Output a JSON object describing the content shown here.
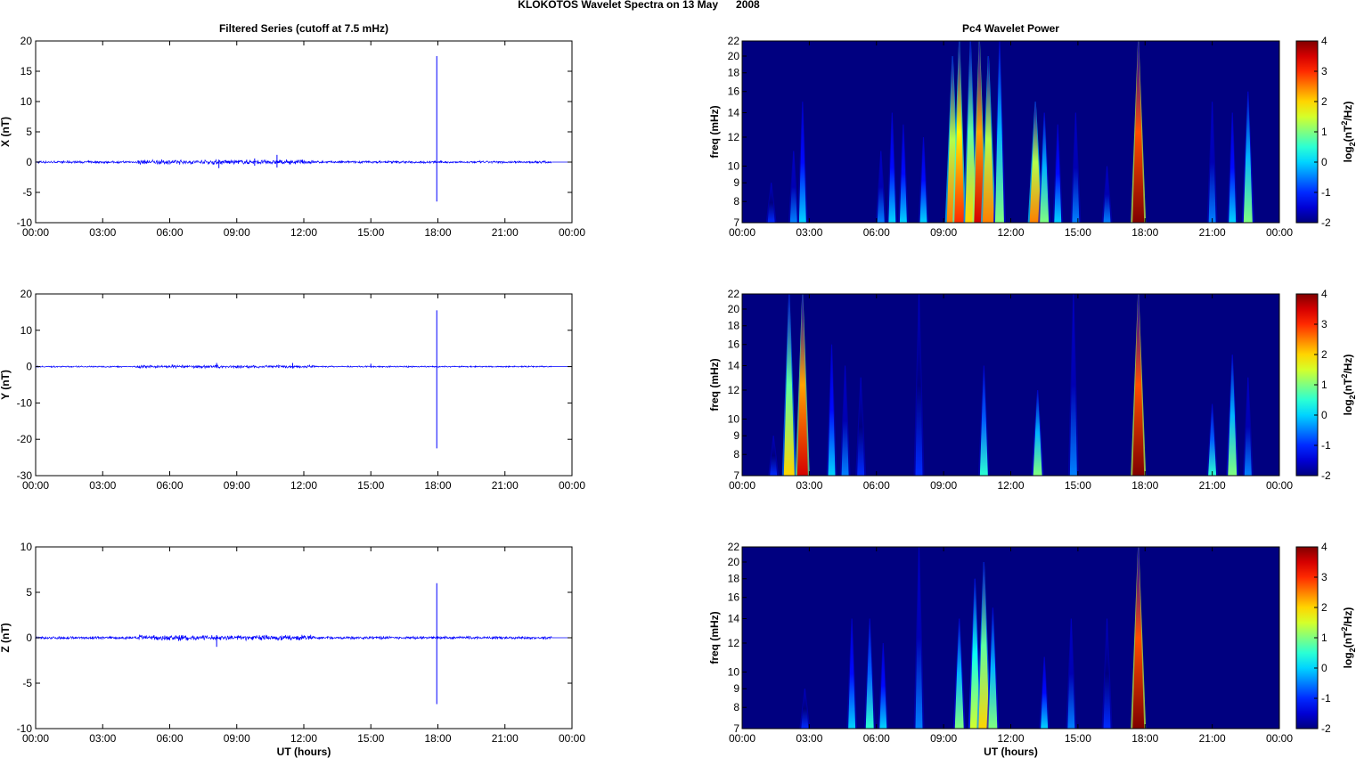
{
  "title": "KLOKOTOS Wavelet Spectra on 13 May      2008",
  "chart_data": [
    {
      "type": "line",
      "title": "Filtered Series (cutoff at 7.5 mHz)",
      "ylabel": "X (nT)",
      "xlabel": "",
      "xlim": [
        0,
        24
      ],
      "ylim": [
        -10,
        20
      ],
      "yticks": [
        -10,
        -5,
        0,
        5,
        10,
        15,
        20
      ],
      "baseline_noise": 0.15,
      "color": "#0000ff",
      "events": [
        {
          "hour": 10.8,
          "max": 1.2,
          "min": -0.9
        },
        {
          "hour": 8.2,
          "max": 0.4,
          "min": -1.0
        },
        {
          "hour": 9.8,
          "max": 0.6,
          "min": -0.6
        },
        {
          "hour": 17.95,
          "max": 17.5,
          "min": -6.5
        }
      ]
    },
    {
      "type": "line",
      "title": "",
      "ylabel": "Y (nT)",
      "xlabel": "",
      "xlim": [
        0,
        24
      ],
      "ylim": [
        -30,
        20
      ],
      "yticks": [
        -30,
        -20,
        -10,
        0,
        10,
        20
      ],
      "baseline_noise": 0.15,
      "color": "#0000ff",
      "events": [
        {
          "hour": 8.1,
          "max": 1.0,
          "min": -0.4
        },
        {
          "hour": 11.5,
          "max": 1.0,
          "min": -0.5
        },
        {
          "hour": 15.0,
          "max": 0.8,
          "min": -0.3
        },
        {
          "hour": 17.95,
          "max": 15.5,
          "min": -22.5
        }
      ]
    },
    {
      "type": "line",
      "title": "",
      "ylabel": "Z (nT)",
      "xlabel": "UT (hours)",
      "xlim": [
        0,
        24
      ],
      "ylim": [
        -10,
        10
      ],
      "yticks": [
        -10,
        -5,
        0,
        5,
        10
      ],
      "baseline_noise": 0.12,
      "color": "#0000ff",
      "events": [
        {
          "hour": 8.1,
          "max": 0.3,
          "min": -1.0
        },
        {
          "hour": 17.95,
          "max": 6.0,
          "min": -7.3
        }
      ]
    },
    {
      "type": "heatmap",
      "title": "Pc4 Wavelet Power",
      "ylabel": "freq (mHz)",
      "xlabel": "",
      "xlim": [
        0,
        24
      ],
      "ylim": [
        7,
        22
      ],
      "yscale": "log",
      "yticks": [
        7,
        8,
        9,
        10,
        12,
        14,
        16,
        18,
        20,
        22
      ],
      "colorbar": {
        "label": "log2(nT2/Hz)",
        "range": [
          -2,
          4
        ],
        "ticks": [
          -2,
          -1,
          0,
          1,
          2,
          3,
          4
        ]
      },
      "bursts": [
        [
          1.3,
          9,
          -1
        ],
        [
          2.3,
          11,
          -0.5
        ],
        [
          2.7,
          15,
          0
        ],
        [
          6.2,
          11,
          -0.5
        ],
        [
          6.7,
          14,
          0
        ],
        [
          7.2,
          13,
          0
        ],
        [
          8.1,
          12,
          0
        ],
        [
          9.4,
          20,
          2.5
        ],
        [
          9.7,
          22,
          3
        ],
        [
          10.2,
          22,
          2
        ],
        [
          10.6,
          22,
          3.5
        ],
        [
          11.0,
          20,
          2.5
        ],
        [
          11.5,
          22,
          1
        ],
        [
          13.1,
          15,
          2.5
        ],
        [
          13.5,
          14,
          1
        ],
        [
          14.1,
          13,
          0
        ],
        [
          14.9,
          14,
          -0.5
        ],
        [
          16.3,
          10,
          -0.5
        ],
        [
          17.7,
          22,
          4
        ],
        [
          21.0,
          15,
          -0.5
        ],
        [
          21.9,
          14,
          0
        ],
        [
          22.6,
          16,
          1
        ]
      ]
    },
    {
      "type": "heatmap",
      "title": "",
      "ylabel": "freq (mHz)",
      "xlabel": "",
      "xlim": [
        0,
        24
      ],
      "ylim": [
        7,
        22
      ],
      "yscale": "log",
      "yticks": [
        7,
        8,
        9,
        10,
        12,
        14,
        16,
        18,
        20,
        22
      ],
      "colorbar": {
        "label": "log2(nT2/Hz)",
        "range": [
          -2,
          4
        ],
        "ticks": [
          -2,
          -1,
          0,
          1,
          2,
          3,
          4
        ]
      },
      "bursts": [
        [
          1.4,
          9,
          -1
        ],
        [
          2.1,
          22,
          2
        ],
        [
          2.7,
          22,
          3.5
        ],
        [
          4.0,
          16,
          0
        ],
        [
          4.6,
          14,
          -0.5
        ],
        [
          5.3,
          13,
          -1
        ],
        [
          7.9,
          22,
          -1
        ],
        [
          10.8,
          14,
          0.5
        ],
        [
          13.2,
          12,
          1
        ],
        [
          14.8,
          22,
          -0.5
        ],
        [
          17.7,
          22,
          4
        ],
        [
          21.0,
          11,
          0.5
        ],
        [
          21.9,
          15,
          1
        ],
        [
          22.6,
          13,
          -0.5
        ]
      ]
    },
    {
      "type": "heatmap",
      "title": "",
      "ylabel": "freq (mHz)",
      "xlabel": "UT (hours)",
      "xlim": [
        0,
        24
      ],
      "ylim": [
        7,
        22
      ],
      "yscale": "log",
      "yticks": [
        7,
        8,
        9,
        10,
        12,
        14,
        16,
        18,
        20,
        22
      ],
      "colorbar": {
        "label": "log2(nT2/Hz)",
        "range": [
          -2,
          4
        ],
        "ticks": [
          -2,
          -1,
          0,
          1,
          2,
          3,
          4
        ]
      },
      "bursts": [
        [
          2.8,
          9,
          -1
        ],
        [
          4.9,
          14,
          0
        ],
        [
          5.7,
          14,
          0.5
        ],
        [
          6.3,
          12,
          0
        ],
        [
          7.9,
          22,
          -0.5
        ],
        [
          9.7,
          14,
          1
        ],
        [
          10.4,
          18,
          1.5
        ],
        [
          10.8,
          20,
          2
        ],
        [
          11.2,
          15,
          1
        ],
        [
          13.5,
          11,
          0
        ],
        [
          14.7,
          14,
          -0.5
        ],
        [
          16.3,
          14,
          -1
        ],
        [
          17.7,
          22,
          4
        ]
      ]
    }
  ],
  "xticklabels": [
    "00:00",
    "03:00",
    "06:00",
    "09:00",
    "12:00",
    "15:00",
    "18:00",
    "21:00",
    "00:00"
  ]
}
